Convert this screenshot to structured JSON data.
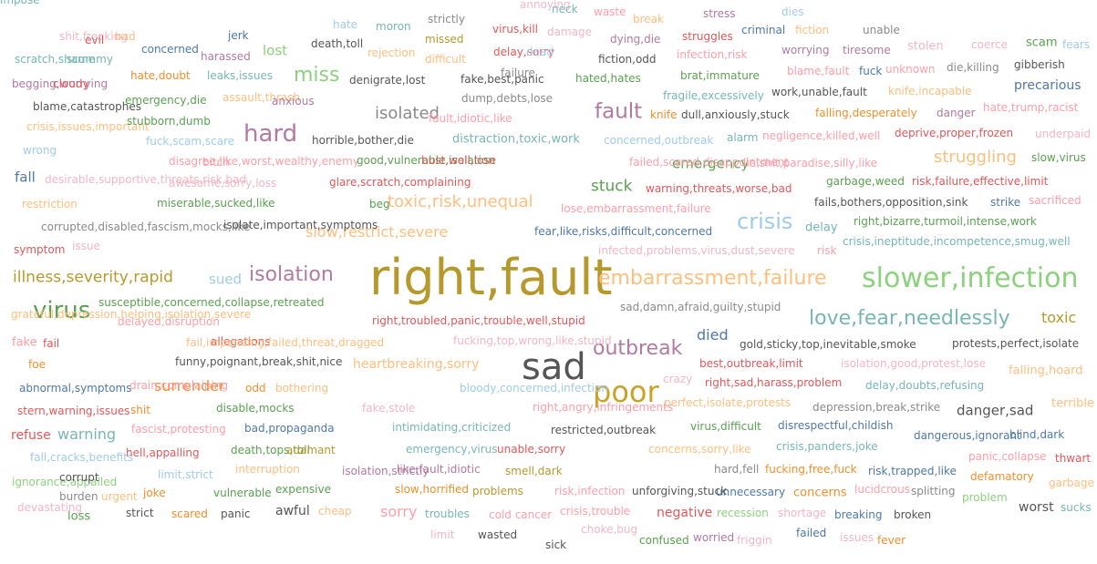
{
  "palette": {
    "blue": "#4e79a7",
    "orange": "#f28e2b",
    "red": "#e15759",
    "teal": "#76b7b2",
    "green": "#59a14f",
    "yellow": "#c9a227",
    "purple": "#b07aa1",
    "pink": "#ff9da7",
    "brown": "#9c755f",
    "gray": "#8a8a8a",
    "dark": "#555555",
    "lightblue": "#a0cbe8",
    "lightgreen": "#8cd17d",
    "lightpink": "#f1b6c6",
    "lightorange": "#ffbe7d",
    "olive": "#b6992d"
  },
  "words": [
    {
      "text": "right,fault",
      "color": "olive"
    },
    {
      "text": "sad",
      "color": "dark"
    },
    {
      "text": "slower,infection",
      "color": "lightgreen"
    },
    {
      "text": "embarrassment,failure",
      "color": "lightorange"
    },
    {
      "text": "poor",
      "color": "yellow"
    },
    {
      "text": "virus",
      "color": "green"
    },
    {
      "text": "isolation",
      "color": "purple"
    },
    {
      "text": "love,fear,needlessly",
      "color": "teal"
    },
    {
      "text": "crisis",
      "color": "lightblue"
    },
    {
      "text": "outbreak",
      "color": "purple"
    },
    {
      "text": "hard",
      "color": "purple"
    },
    {
      "text": "illness,severity,rapid",
      "color": "olive"
    },
    {
      "text": "toxic,risk,unequal",
      "color": "lightorange"
    },
    {
      "text": "fault",
      "color": "purple"
    },
    {
      "text": "miss",
      "color": "lightgreen"
    },
    {
      "text": "isolated",
      "color": "gray"
    },
    {
      "text": "struggling",
      "color": "lightorange"
    },
    {
      "text": "danger,sad",
      "color": "dark"
    },
    {
      "text": "toxic",
      "color": "olive"
    },
    {
      "text": "surrender",
      "color": "orange"
    },
    {
      "text": "warning",
      "color": "teal"
    },
    {
      "text": "slow,restrict,severe",
      "color": "lightorange"
    },
    {
      "text": "heartbreaking,sorry",
      "color": "lightorange"
    },
    {
      "text": "emergency",
      "color": "green"
    },
    {
      "text": "stuck",
      "color": "green"
    },
    {
      "text": "died",
      "color": "blue"
    },
    {
      "text": "sorry",
      "color": "pink"
    },
    {
      "text": "lost",
      "color": "lightgreen"
    },
    {
      "text": "fall",
      "color": "blue"
    },
    {
      "text": "sued",
      "color": "lightblue"
    },
    {
      "text": "precarious",
      "color": "blue"
    },
    {
      "text": "falling,hoard",
      "color": "lightorange"
    },
    {
      "text": "awful",
      "color": "dark"
    },
    {
      "text": "concerns",
      "color": "orange"
    },
    {
      "text": "negative",
      "color": "red"
    },
    {
      "text": "worst",
      "color": "dark"
    },
    {
      "text": "refuse",
      "color": "red"
    },
    {
      "text": "fake",
      "color": "pink"
    },
    {
      "text": "loss",
      "color": "green"
    },
    {
      "text": "delay",
      "color": "teal"
    },
    {
      "text": "terrible",
      "color": "lightorange"
    },
    {
      "text": "protests,perfect,isolate",
      "color": "dark"
    },
    {
      "text": "dangerous,ignorant",
      "color": "blue"
    },
    {
      "text": "blind,dark",
      "color": "blue"
    },
    {
      "text": "distraction,toxic,work",
      "color": "teal"
    },
    {
      "text": "falling,desperately",
      "color": "orange"
    },
    {
      "text": "danger",
      "color": "purple"
    },
    {
      "text": "hate,trump,racist",
      "color": "pink"
    },
    {
      "text": "slow,virus",
      "color": "green"
    },
    {
      "text": "right,bizarre,turmoil,intense,work",
      "color": "green"
    },
    {
      "text": "crisis,ineptitude,incompetence,smug,well",
      "color": "teal"
    },
    {
      "text": "fails,bothers,opposition,sink",
      "color": "dark"
    },
    {
      "text": "strike",
      "color": "blue"
    },
    {
      "text": "sacrificed",
      "color": "pink"
    },
    {
      "text": "garbage,weed",
      "color": "green"
    },
    {
      "text": "risk,failure,effective,limit",
      "color": "red"
    },
    {
      "text": "deprive,proper,frozen",
      "color": "red"
    },
    {
      "text": "underpaid",
      "color": "lightpink"
    },
    {
      "text": "knife,incapable",
      "color": "lightorange"
    },
    {
      "text": "unknown",
      "color": "pink"
    },
    {
      "text": "die,killing",
      "color": "gray"
    },
    {
      "text": "gibberish",
      "color": "dark"
    },
    {
      "text": "scam",
      "color": "green"
    },
    {
      "text": "fears",
      "color": "lightblue"
    },
    {
      "text": "coerce",
      "color": "lightpink"
    },
    {
      "text": "stolen",
      "color": "lightpink"
    },
    {
      "text": "unable",
      "color": "gray"
    },
    {
      "text": "dies",
      "color": "lightblue"
    },
    {
      "text": "stress",
      "color": "purple"
    },
    {
      "text": "criminal",
      "color": "blue"
    },
    {
      "text": "fiction",
      "color": "lightorange"
    },
    {
      "text": "worrying",
      "color": "purple"
    },
    {
      "text": "tiresome",
      "color": "purple"
    },
    {
      "text": "blame,fault",
      "color": "pink"
    },
    {
      "text": "fuck",
      "color": "blue"
    },
    {
      "text": "work,unable,fault",
      "color": "dark"
    },
    {
      "text": "dull,anxiously,stuck",
      "color": "dark"
    },
    {
      "text": "knife",
      "color": "orange"
    },
    {
      "text": "concerned,outbreak",
      "color": "lightblue"
    },
    {
      "text": "alarm",
      "color": "teal"
    },
    {
      "text": "negligence,killed,well",
      "color": "pink"
    },
    {
      "text": "lie,shit,paradise,silly,like",
      "color": "pink"
    },
    {
      "text": "warning,threats,worse,bad",
      "color": "red"
    },
    {
      "text": "lose,embarrassment,failure",
      "color": "pink"
    },
    {
      "text": "fear,like,risks,difficult,concerned",
      "color": "blue"
    },
    {
      "text": "infected,problems,virus,dust,severe",
      "color": "lightpink"
    },
    {
      "text": "risk",
      "color": "pink"
    },
    {
      "text": "sad,damn,afraid,guilty,stupid",
      "color": "gray"
    },
    {
      "text": "gold,sticky,top,inevitable,smoke",
      "color": "dark"
    },
    {
      "text": "best,outbreak,limit",
      "color": "red"
    },
    {
      "text": "isolation,good,protest,lose",
      "color": "lightpink"
    },
    {
      "text": "crazy",
      "color": "lightpink"
    },
    {
      "text": "right,sad,harass,problem",
      "color": "red"
    },
    {
      "text": "delay,doubts,refusing",
      "color": "teal"
    },
    {
      "text": "perfect,isolate,protests",
      "color": "lightorange"
    },
    {
      "text": "depression,break,strike",
      "color": "gray"
    },
    {
      "text": "virus,difficult",
      "color": "green"
    },
    {
      "text": "disrespectful,childish",
      "color": "blue"
    },
    {
      "text": "crisis,panders,joke",
      "color": "teal"
    },
    {
      "text": "concerns,sorry,like",
      "color": "lightorange"
    },
    {
      "text": "panic,collapse",
      "color": "pink"
    },
    {
      "text": "thwart",
      "color": "red"
    },
    {
      "text": "hard,fell",
      "color": "gray"
    },
    {
      "text": "fucking,free,fuck",
      "color": "orange"
    },
    {
      "text": "risk,trapped,like",
      "color": "blue"
    },
    {
      "text": "defamatory",
      "color": "orange"
    },
    {
      "text": "garbage",
      "color": "lightorange"
    },
    {
      "text": "lucidcrous",
      "color": "pink"
    },
    {
      "text": "splitting",
      "color": "gray"
    },
    {
      "text": "problem",
      "color": "lightgreen"
    },
    {
      "text": "sucks",
      "color": "teal"
    },
    {
      "text": "breaking",
      "color": "blue"
    },
    {
      "text": "broken",
      "color": "dark"
    },
    {
      "text": "shortage",
      "color": "lightpink"
    },
    {
      "text": "recession",
      "color": "lightgreen"
    },
    {
      "text": "unnecessary",
      "color": "blue"
    },
    {
      "text": "unforgiving,stuck",
      "color": "dark"
    },
    {
      "text": "risk,infection",
      "color": "pink"
    },
    {
      "text": "crisis,trouble",
      "color": "pink"
    },
    {
      "text": "choke,bug",
      "color": "lightpink"
    },
    {
      "text": "confused",
      "color": "green"
    },
    {
      "text": "worried",
      "color": "purple"
    },
    {
      "text": "friggin",
      "color": "lightpink"
    },
    {
      "text": "failed",
      "color": "blue"
    },
    {
      "text": "issues",
      "color": "lightpink"
    },
    {
      "text": "fever",
      "color": "orange"
    },
    {
      "text": "sick",
      "color": "dark"
    },
    {
      "text": "limit",
      "color": "lightpink"
    },
    {
      "text": "wasted",
      "color": "dark"
    },
    {
      "text": "cold cancer",
      "color": "pink"
    },
    {
      "text": "troubles",
      "color": "teal"
    },
    {
      "text": "problems",
      "color": "olive"
    },
    {
      "text": "smell,dark",
      "color": "olive"
    },
    {
      "text": "like,fault,idiotic",
      "color": "purple"
    },
    {
      "text": "emergency,virus",
      "color": "teal"
    },
    {
      "text": "unable,sorry",
      "color": "red"
    },
    {
      "text": "restricted,outbreak",
      "color": "dark"
    },
    {
      "text": "intimidating,criticized",
      "color": "teal"
    },
    {
      "text": "right,angry,infringements",
      "color": "pink"
    },
    {
      "text": "fake,stole",
      "color": "lightpink"
    },
    {
      "text": "bloody,concerned,infection",
      "color": "lightblue"
    },
    {
      "text": "bothering",
      "color": "lightorange"
    },
    {
      "text": "funny,poignant,break,shit,nice",
      "color": "dark"
    },
    {
      "text": "fucking,top,wrong,like,stupid",
      "color": "lightpink"
    },
    {
      "text": "allegations",
      "color": "red"
    },
    {
      "text": "right,troubled,panic,trouble,well,stupid",
      "color": "red"
    },
    {
      "text": "fail,impending,failed,threat,dragged",
      "color": "lightorange"
    },
    {
      "text": "fail",
      "color": "red"
    },
    {
      "text": "delayed,disruption",
      "color": "pink"
    },
    {
      "text": "susceptible,concerned,collapse,retreated",
      "color": "green"
    },
    {
      "text": "grateful,depression,helping,isolation,severe",
      "color": "lightorange"
    },
    {
      "text": "foe",
      "color": "orange"
    },
    {
      "text": "abnormal,symptoms",
      "color": "blue"
    },
    {
      "text": "drain,complaining",
      "color": "pink"
    },
    {
      "text": "odd",
      "color": "orange"
    },
    {
      "text": "shit",
      "color": "orange"
    },
    {
      "text": "disable,mocks",
      "color": "green"
    },
    {
      "text": "stern,warning,issues",
      "color": "red"
    },
    {
      "text": "fascist,protesting",
      "color": "pink"
    },
    {
      "text": "bad,propaganda",
      "color": "blue"
    },
    {
      "text": "fall,cracks,benefits",
      "color": "lightblue"
    },
    {
      "text": "hell,appalling",
      "color": "red"
    },
    {
      "text": "death,tops,toll",
      "color": "green"
    },
    {
      "text": "adamant",
      "color": "olive"
    },
    {
      "text": "ignorance,appalled",
      "color": "lightgreen"
    },
    {
      "text": "corrupt",
      "color": "dark"
    },
    {
      "text": "limit,strict",
      "color": "lightblue"
    },
    {
      "text": "interruption",
      "color": "lightorange"
    },
    {
      "text": "isolation,strictly",
      "color": "purple"
    },
    {
      "text": "burden",
      "color": "gray"
    },
    {
      "text": "urgent",
      "color": "lightorange"
    },
    {
      "text": "joke",
      "color": "orange"
    },
    {
      "text": "vulnerable",
      "color": "green"
    },
    {
      "text": "expensive",
      "color": "green"
    },
    {
      "text": "slow,horrified",
      "color": "orange"
    },
    {
      "text": "devastating",
      "color": "lightpink"
    },
    {
      "text": "strict",
      "color": "dark"
    },
    {
      "text": "scared",
      "color": "orange"
    },
    {
      "text": "panic",
      "color": "dark"
    },
    {
      "text": "cheap",
      "color": "lightorange"
    },
    {
      "text": "symptom",
      "color": "red"
    },
    {
      "text": "issue",
      "color": "lightpink"
    },
    {
      "text": "corrupted,disabled,fascism,mocks,like",
      "color": "gray"
    },
    {
      "text": "isolate,important,symptoms",
      "color": "dark"
    },
    {
      "text": "restriction",
      "color": "lightorange"
    },
    {
      "text": "miserable,sucked,like",
      "color": "green"
    },
    {
      "text": "desirable,supportive,threats,risk,bad",
      "color": "lightpink"
    },
    {
      "text": "awesome,sorry,loss",
      "color": "lightpink"
    },
    {
      "text": "glare,scratch,complaining",
      "color": "red"
    },
    {
      "text": "beg",
      "color": "green"
    },
    {
      "text": "disagree,like,worst,wealthy,enemy",
      "color": "pink"
    },
    {
      "text": "bitch",
      "color": "pink"
    },
    {
      "text": "good,vulnerable,isolation",
      "color": "green"
    },
    {
      "text": "bust,well,lose",
      "color": "red"
    },
    {
      "text": "failed,scared,disappointment",
      "color": "pink"
    },
    {
      "text": "wrong",
      "color": "lightblue"
    },
    {
      "text": "fuck,scam,scare",
      "color": "lightblue"
    },
    {
      "text": "horrible,bother,die",
      "color": "dark"
    },
    {
      "text": "crisis,issues,important",
      "color": "lightorange"
    },
    {
      "text": "stubborn,dumb",
      "color": "green"
    },
    {
      "text": "fault,idiotic,like",
      "color": "pink"
    },
    {
      "text": "blame,catastrophes",
      "color": "dark"
    },
    {
      "text": "emergency,die",
      "color": "green"
    },
    {
      "text": "assault,thrash",
      "color": "lightorange"
    },
    {
      "text": "anxious",
      "color": "purple"
    },
    {
      "text": "dump,debts,lose",
      "color": "gray"
    },
    {
      "text": "fragile,excessively",
      "color": "teal"
    },
    {
      "text": "begging,worrying",
      "color": "purple"
    },
    {
      "text": "cloudy",
      "color": "red"
    },
    {
      "text": "hate,doubt",
      "color": "orange"
    },
    {
      "text": "leaks,issues",
      "color": "teal"
    },
    {
      "text": "denigrate,lost",
      "color": "dark"
    },
    {
      "text": "fake,best,panic",
      "color": "dark"
    },
    {
      "text": "failure",
      "color": "gray"
    },
    {
      "text": "hated,hates",
      "color": "green"
    },
    {
      "text": "brat,immature",
      "color": "green"
    },
    {
      "text": "scratch,shame",
      "color": "teal"
    },
    {
      "text": "scummy",
      "color": "teal"
    },
    {
      "text": "concerned",
      "color": "blue"
    },
    {
      "text": "harassed",
      "color": "purple"
    },
    {
      "text": "death,toll",
      "color": "dark"
    },
    {
      "text": "rejection",
      "color": "lightorange"
    },
    {
      "text": "difficult",
      "color": "lightorange"
    },
    {
      "text": "delay,sorry",
      "color": "red"
    },
    {
      "text": "dead",
      "color": "lightblue"
    },
    {
      "text": "fiction,odd",
      "color": "dark"
    },
    {
      "text": "infection,risk",
      "color": "pink"
    },
    {
      "text": "shit,freaking",
      "color": "lightpink"
    },
    {
      "text": "evil",
      "color": "red"
    },
    {
      "text": "bad",
      "color": "lightorange"
    },
    {
      "text": "jerk",
      "color": "blue"
    },
    {
      "text": "hate",
      "color": "lightblue"
    },
    {
      "text": "moron",
      "color": "teal"
    },
    {
      "text": "strictly",
      "color": "gray"
    },
    {
      "text": "missed",
      "color": "olive"
    },
    {
      "text": "virus,kill",
      "color": "red"
    },
    {
      "text": "damage",
      "color": "lightpink"
    },
    {
      "text": "dying,die",
      "color": "purple"
    },
    {
      "text": "struggles",
      "color": "red"
    },
    {
      "text": "annoying",
      "color": "lightpink"
    },
    {
      "text": "neck",
      "color": "teal"
    },
    {
      "text": "waste",
      "color": "pink"
    },
    {
      "text": "break",
      "color": "lightorange"
    },
    {
      "text": "impose",
      "color": "teal"
    }
  ]
}
